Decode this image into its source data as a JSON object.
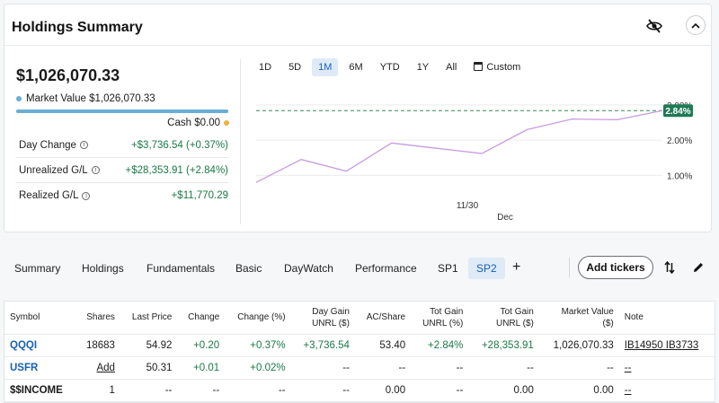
{
  "summary": {
    "title": "Holdings Summary",
    "total_value": "$1,026,070.33",
    "market_value_label": "Market Value",
    "market_value": "$1,026,070.33",
    "market_value_color": "#6aaed6",
    "market_value_fraction": 1.0,
    "cash_label": "Cash",
    "cash_value": "$0.00",
    "cash_color": "#f0b13a",
    "stats": [
      {
        "label": "Day Change",
        "value": "+$3,736.54 (+0.37%)"
      },
      {
        "label": "Unrealized G/L",
        "value": "+$28,353.91 (+2.84%)"
      },
      {
        "label": "Realized G/L",
        "value": "+$11,770.29"
      }
    ]
  },
  "chart_controls": {
    "ranges": [
      "1D",
      "5D",
      "1M",
      "6M",
      "YTD",
      "1Y",
      "All"
    ],
    "active_range": "1M",
    "custom_label": "Custom"
  },
  "chart_data": {
    "type": "line",
    "series": [
      {
        "values": [
          0.8,
          1.45,
          1.12,
          1.92,
          1.77,
          1.62,
          2.3,
          2.6,
          2.58,
          2.84
        ],
        "color": "#c79be0"
      }
    ],
    "reference_line": 2.84,
    "current_label": "2.84%",
    "y_ticks": [
      "1.00%",
      "2.00%",
      "3.00%"
    ],
    "y_tick_values": [
      1,
      2,
      3
    ],
    "x_labels": [
      "11/30",
      "Dec"
    ],
    "ylim": [
      0.5,
      3.1
    ],
    "grid": true
  },
  "tabs": {
    "items": [
      "Summary",
      "Holdings",
      "Fundamentals",
      "Basic",
      "DayWatch",
      "Performance",
      "SP1",
      "SP2"
    ],
    "active": "SP2",
    "add_tab": "+",
    "add_tickers": "Add tickers"
  },
  "table": {
    "headers": [
      {
        "line1": "Symbol",
        "line2": ""
      },
      {
        "line1": "Shares",
        "line2": ""
      },
      {
        "line1": "Last Price",
        "line2": ""
      },
      {
        "line1": "Change",
        "line2": ""
      },
      {
        "line1": "Change (%)",
        "line2": ""
      },
      {
        "line1": "Day Gain",
        "line2": "UNRL ($)"
      },
      {
        "line1": "AC/Share",
        "line2": ""
      },
      {
        "line1": "Tot Gain",
        "line2": "UNRL (%)"
      },
      {
        "line1": "Tot Gain",
        "line2": "UNRL ($)"
      },
      {
        "line1": "Market Value",
        "line2": "($)"
      },
      {
        "line1": "Note",
        "line2": ""
      }
    ],
    "rows": [
      {
        "symbol": "QQQI",
        "shares": "18683",
        "last_price": "54.92",
        "change": "+0.20",
        "change_pct": "+0.37%",
        "day_gain": "+3,736.54",
        "ac_share": "53.40",
        "tot_gain_pct": "+2.84%",
        "tot_gain": "+28,353.91",
        "market_value": "1,026,070.33",
        "note": "IB14950 IB3733"
      },
      {
        "symbol": "USFR",
        "shares": "Add",
        "last_price": "50.31",
        "change": "+0.01",
        "change_pct": "+0.02%",
        "day_gain": "--",
        "ac_share": "--",
        "tot_gain_pct": "--",
        "tot_gain": "--",
        "market_value": "--",
        "note": "--"
      },
      {
        "symbol": "$$INCOME",
        "shares": "1",
        "last_price": "--",
        "change": "--",
        "change_pct": "--",
        "day_gain": "--",
        "ac_share": "0.00",
        "tot_gain_pct": "--",
        "tot_gain": "0.00",
        "market_value": "0.00",
        "note": "--"
      }
    ]
  }
}
